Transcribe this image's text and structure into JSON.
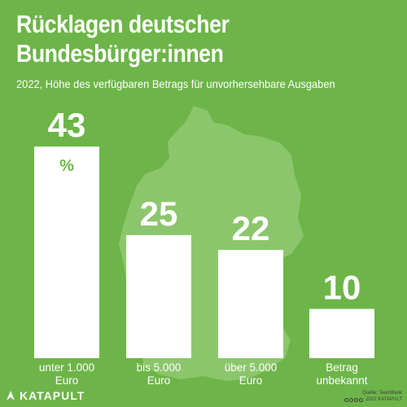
{
  "title_line1": "Rücklagen deutscher",
  "title_line2": "Bundesbürger:innen",
  "subtitle": "2022, Höhe des verfügbaren Betrags für unvorhersehbare Ausgaben",
  "colors": {
    "background": "#6db548",
    "bars": "#ffffff",
    "accent": "#6db548",
    "map": "#8cc66c",
    "text": "#ffffff"
  },
  "chart_data": {
    "type": "bar",
    "title": "Rücklagen deutscher Bundesbürger:innen",
    "subtitle": "2022, Höhe des verfügbaren Betrags für unvorhersehbare Ausgaben",
    "unit": "%",
    "categories": [
      [
        "unter 1.000",
        "Euro"
      ],
      [
        "bis 5.000",
        "Euro"
      ],
      [
        "über 5.000",
        "Euro"
      ],
      [
        "Betrag",
        "unbekannt"
      ]
    ],
    "values": [
      43,
      25,
      22,
      10
    ],
    "value_labels": [
      "43",
      "25",
      "22",
      "10"
    ],
    "ylim": [
      0,
      43
    ],
    "grid": false,
    "legend": "none"
  },
  "footer": {
    "brand": "KATAPULT",
    "brand_icon": "katapult-logo-icon",
    "source": "Quelle: TeamBank",
    "copyright": "2022 KATAPULT",
    "license_icon": "creative-commons-icons"
  }
}
